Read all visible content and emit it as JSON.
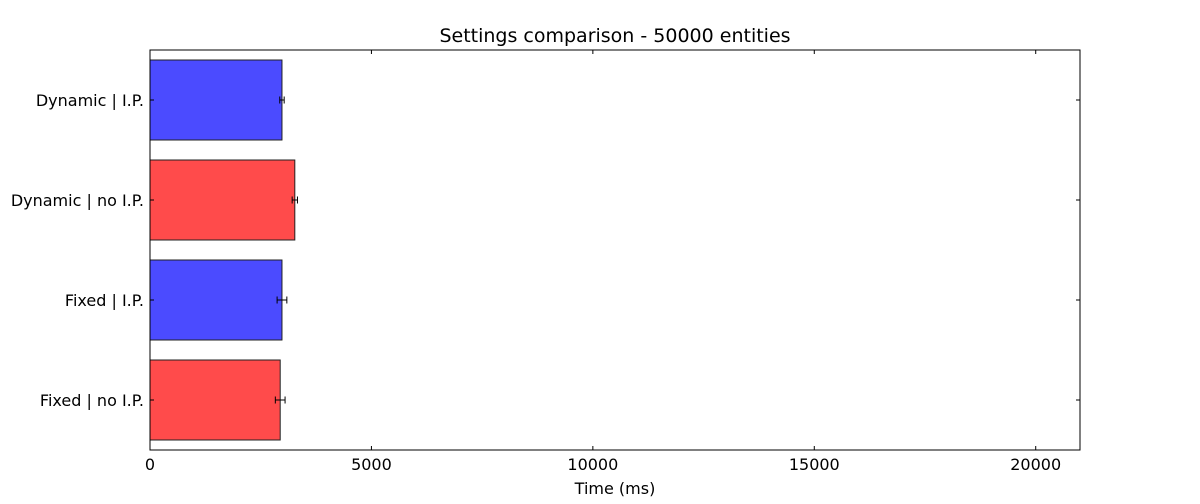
{
  "chart_data": {
    "type": "bar",
    "orientation": "horizontal",
    "title": "Settings comparison - 50000 entities",
    "xlabel": "Time (ms)",
    "ylabel": "",
    "xlim": [
      0,
      21000
    ],
    "xticks": [
      0,
      5000,
      10000,
      15000,
      20000
    ],
    "xtick_labels": [
      "0",
      "5000",
      "10000",
      "15000",
      "20000"
    ],
    "grid": false,
    "categories": [
      "Dynamic | I.P.",
      "Dynamic | no I.P.",
      "Fixed | I.P.",
      "Fixed | no I.P."
    ],
    "values": [
      2980,
      3270,
      2980,
      2940
    ],
    "errors": [
      50,
      60,
      110,
      110
    ],
    "colors": [
      "#4b4bff",
      "#ff4b4b",
      "#4b4bff",
      "#ff4b4b"
    ]
  }
}
